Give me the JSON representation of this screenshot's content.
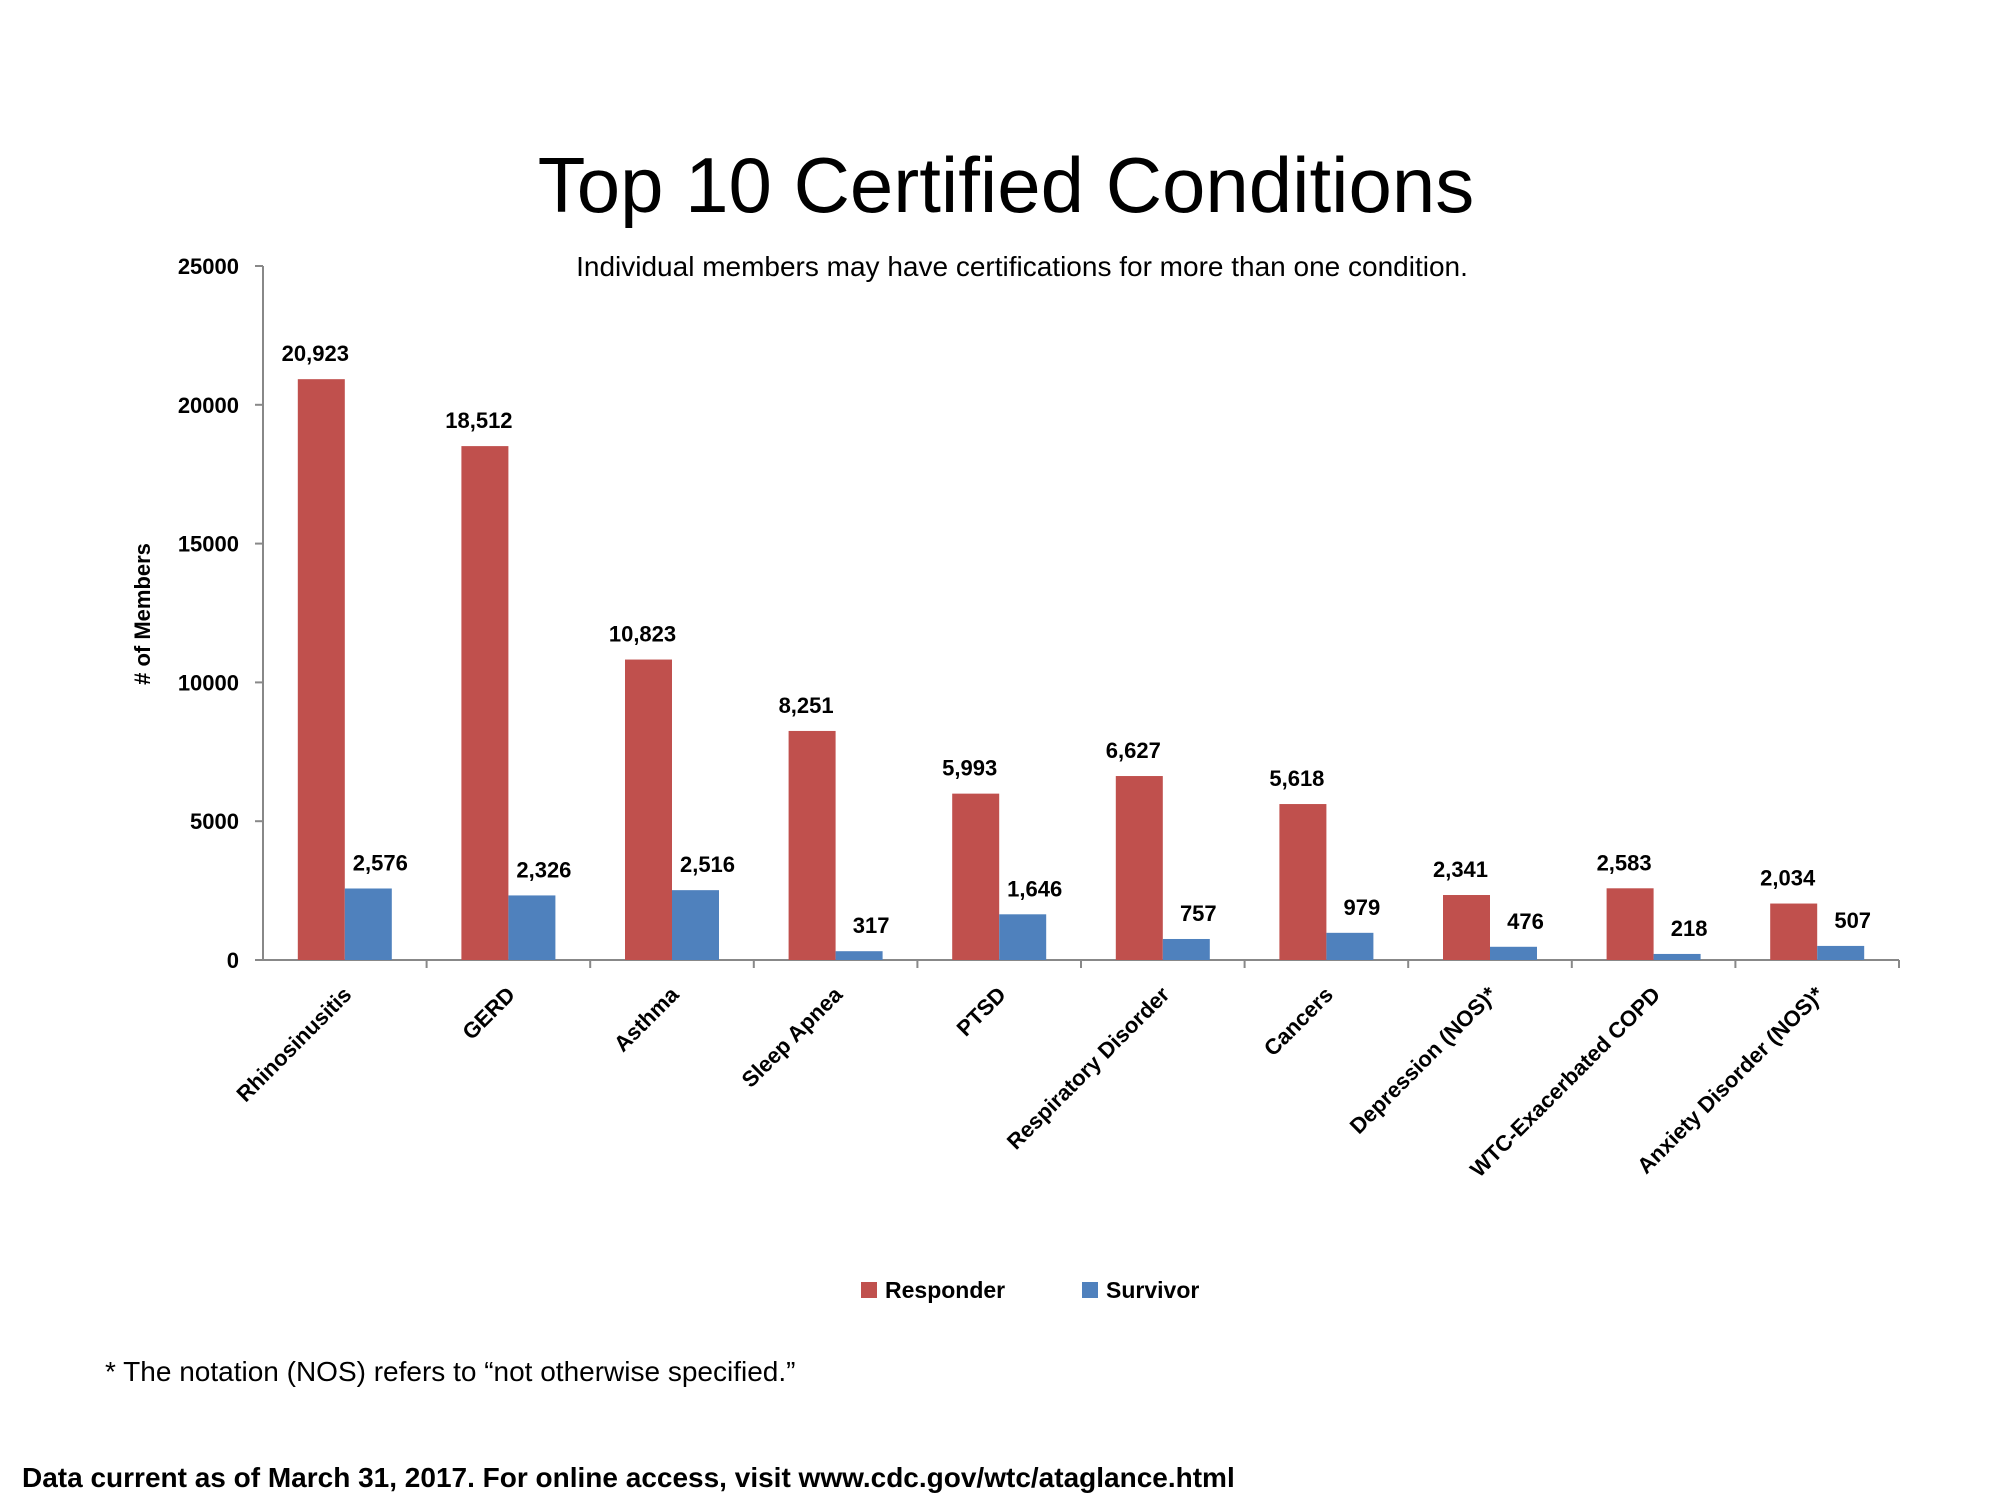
{
  "chart_data": {
    "type": "bar",
    "title": "Top 10 Certified Conditions",
    "subtitle": "Individual members may have certifications for more than one condition.",
    "xlabel": "",
    "ylabel": "# of Members",
    "ylim": [
      0,
      25000
    ],
    "yticks": [
      "0",
      "5000",
      "10000",
      "15000",
      "20000",
      "25000"
    ],
    "grid": false,
    "legend_position": "bottom",
    "categories": [
      "Rhinosinusitis",
      "GERD",
      "Asthma",
      "Sleep Apnea",
      "PTSD",
      "Respiratory Disorder",
      "Cancers",
      "Depression (NOS)*",
      "WTC-Exacerbated COPD",
      "Anxiety Disorder (NOS)*"
    ],
    "series": [
      {
        "name": "Responder",
        "color": "#C0504D",
        "values": [
          20923,
          18512,
          10823,
          8251,
          5993,
          6627,
          5618,
          2341,
          2583,
          2034
        ],
        "labels": [
          "20,923",
          "18,512",
          "10,823",
          "8,251",
          "5,993",
          "6,627",
          "5,618",
          "2,341",
          "2,583",
          "2,034"
        ]
      },
      {
        "name": "Survivor",
        "color": "#4F81BD",
        "values": [
          2576,
          2326,
          2516,
          317,
          1646,
          757,
          979,
          476,
          218,
          507
        ],
        "labels": [
          "2,576",
          "2,326",
          "2,516",
          "317",
          "1,646",
          "757",
          "979",
          "476",
          "218",
          "507"
        ]
      }
    ]
  },
  "footnote": "* The notation (NOS) refers to “not otherwise specified.”",
  "source": "Data current as of March 31, 2017. For online access, visit www.cdc.gov/wtc/ataglance.html"
}
